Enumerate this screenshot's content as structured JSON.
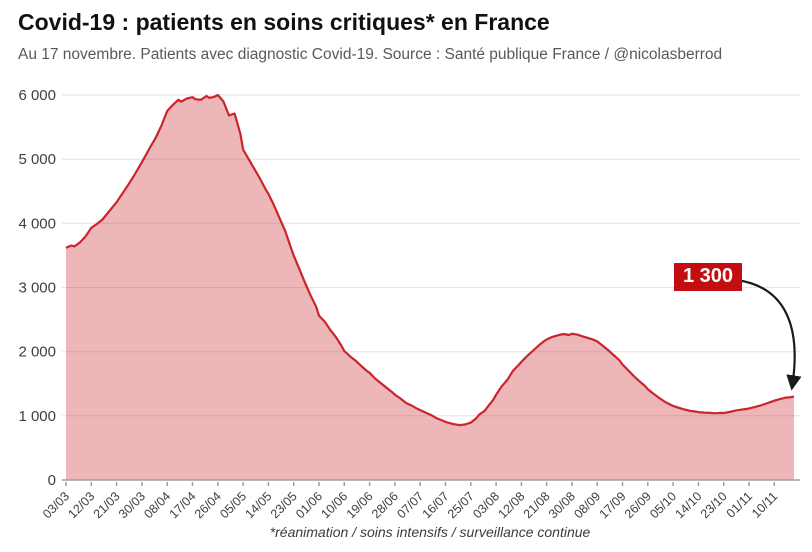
{
  "header": {
    "title": "Covid-19 : patients en soins critiques* en France",
    "subtitle": "Au 17 novembre. Patients avec diagnostic Covid-19. Source : Santé publique France / @nicolasberrod"
  },
  "footer": {
    "note": "*réanimation / soins intensifs / surveillance continue"
  },
  "chart_data": {
    "type": "area",
    "title": "Covid-19 : patients en soins critiques* en France",
    "subtitle": "Au 17 novembre. Patients avec diagnostic Covid-19. Source : Santé publique France / @nicolasberrod",
    "footnote": "*réanimation / soins intensifs / surveillance continue",
    "grid": true,
    "legend": false,
    "y_axis": {
      "lim": [
        0,
        6000
      ],
      "ticks": [
        0,
        1000,
        2000,
        3000,
        4000,
        5000,
        6000
      ],
      "tick_labels": [
        "0",
        "1 000",
        "2 000",
        "3 000",
        "4 000",
        "5 000",
        "6 000"
      ]
    },
    "x_axis": {
      "unit": "date (jj/mm)",
      "day_max": 259,
      "tick_days": [
        0,
        9,
        18,
        27,
        36,
        45,
        54,
        63,
        72,
        81,
        90,
        99,
        108,
        117,
        126,
        135,
        144,
        153,
        162,
        171,
        180,
        189,
        198,
        207,
        216,
        225,
        234,
        243,
        252
      ],
      "tick_labels": [
        "03/03",
        "12/03",
        "21/03",
        "30/03",
        "08/04",
        "17/04",
        "26/04",
        "05/05",
        "14/05",
        "23/05",
        "01/06",
        "10/06",
        "19/06",
        "28/06",
        "07/07",
        "16/07",
        "25/07",
        "03/08",
        "12/08",
        "21/08",
        "30/08",
        "08/09",
        "17/09",
        "26/09",
        "05/10",
        "14/10",
        "23/10",
        "01/11",
        "10/11"
      ]
    },
    "annotation": {
      "text": "1 300",
      "value": 1300
    },
    "colors": {
      "line": "#c9252b",
      "fill": "rgba(201,37,43,0.33)",
      "annotation_bg": "#c40d10",
      "annotation_text": "#ffffff",
      "grid": "#e4e4e4",
      "axis": "#9e9e9e",
      "tick_text": "#3f3f3f",
      "arrow": "#1a1a1a"
    },
    "series": [
      {
        "name": "Patients Covid-19 en soins critiques",
        "points_day_value": [
          [
            0,
            3620
          ],
          [
            2,
            3655
          ],
          [
            3,
            3640
          ],
          [
            5,
            3705
          ],
          [
            7,
            3800
          ],
          [
            9,
            3930
          ],
          [
            11,
            3990
          ],
          [
            13,
            4060
          ],
          [
            15,
            4170
          ],
          [
            18,
            4330
          ],
          [
            20,
            4460
          ],
          [
            22,
            4590
          ],
          [
            24,
            4730
          ],
          [
            26,
            4880
          ],
          [
            28,
            5030
          ],
          [
            30,
            5190
          ],
          [
            32,
            5340
          ],
          [
            34,
            5530
          ],
          [
            36,
            5750
          ],
          [
            38,
            5845
          ],
          [
            40,
            5925
          ],
          [
            41,
            5895
          ],
          [
            43,
            5945
          ],
          [
            45,
            5965
          ],
          [
            46,
            5935
          ],
          [
            48,
            5925
          ],
          [
            50,
            5985
          ],
          [
            51,
            5955
          ],
          [
            53,
            5975
          ],
          [
            54,
            6000
          ],
          [
            56,
            5900
          ],
          [
            58,
            5680
          ],
          [
            60,
            5710
          ],
          [
            62,
            5400
          ],
          [
            63,
            5150
          ],
          [
            65,
            5000
          ],
          [
            67,
            4850
          ],
          [
            69,
            4700
          ],
          [
            71,
            4530
          ],
          [
            72,
            4460
          ],
          [
            74,
            4280
          ],
          [
            76,
            4080
          ],
          [
            78,
            3880
          ],
          [
            80,
            3620
          ],
          [
            81,
            3500
          ],
          [
            83,
            3290
          ],
          [
            85,
            3080
          ],
          [
            87,
            2880
          ],
          [
            89,
            2700
          ],
          [
            90,
            2560
          ],
          [
            92,
            2470
          ],
          [
            94,
            2340
          ],
          [
            96,
            2230
          ],
          [
            98,
            2090
          ],
          [
            99,
            2010
          ],
          [
            101,
            1930
          ],
          [
            103,
            1860
          ],
          [
            105,
            1780
          ],
          [
            107,
            1700
          ],
          [
            108,
            1670
          ],
          [
            110,
            1580
          ],
          [
            112,
            1510
          ],
          [
            114,
            1440
          ],
          [
            116,
            1370
          ],
          [
            117,
            1330
          ],
          [
            119,
            1270
          ],
          [
            121,
            1200
          ],
          [
            123,
            1160
          ],
          [
            125,
            1110
          ],
          [
            126,
            1090
          ],
          [
            128,
            1050
          ],
          [
            130,
            1010
          ],
          [
            132,
            960
          ],
          [
            134,
            925
          ],
          [
            135,
            905
          ],
          [
            137,
            880
          ],
          [
            138,
            870
          ],
          [
            140,
            855
          ],
          [
            142,
            865
          ],
          [
            144,
            895
          ],
          [
            146,
            965
          ],
          [
            147,
            1020
          ],
          [
            149,
            1080
          ],
          [
            150,
            1140
          ],
          [
            152,
            1250
          ],
          [
            153,
            1330
          ],
          [
            155,
            1460
          ],
          [
            157,
            1560
          ],
          [
            159,
            1700
          ],
          [
            161,
            1790
          ],
          [
            162,
            1840
          ],
          [
            164,
            1930
          ],
          [
            166,
            2010
          ],
          [
            168,
            2090
          ],
          [
            170,
            2160
          ],
          [
            171,
            2190
          ],
          [
            173,
            2230
          ],
          [
            175,
            2255
          ],
          [
            177,
            2275
          ],
          [
            179,
            2260
          ],
          [
            180,
            2280
          ],
          [
            182,
            2265
          ],
          [
            184,
            2235
          ],
          [
            186,
            2210
          ],
          [
            188,
            2180
          ],
          [
            189,
            2160
          ],
          [
            191,
            2090
          ],
          [
            193,
            2020
          ],
          [
            195,
            1940
          ],
          [
            197,
            1860
          ],
          [
            198,
            1800
          ],
          [
            200,
            1710
          ],
          [
            202,
            1620
          ],
          [
            204,
            1540
          ],
          [
            206,
            1465
          ],
          [
            207,
            1415
          ],
          [
            209,
            1345
          ],
          [
            211,
            1280
          ],
          [
            213,
            1220
          ],
          [
            215,
            1175
          ],
          [
            216,
            1155
          ],
          [
            218,
            1125
          ],
          [
            220,
            1098
          ],
          [
            222,
            1078
          ],
          [
            224,
            1066
          ],
          [
            225,
            1058
          ],
          [
            227,
            1050
          ],
          [
            229,
            1046
          ],
          [
            231,
            1040
          ],
          [
            233,
            1046
          ],
          [
            234,
            1044
          ],
          [
            236,
            1060
          ],
          [
            238,
            1080
          ],
          [
            240,
            1096
          ],
          [
            242,
            1106
          ],
          [
            243,
            1116
          ],
          [
            245,
            1136
          ],
          [
            247,
            1160
          ],
          [
            249,
            1190
          ],
          [
            251,
            1220
          ],
          [
            252,
            1236
          ],
          [
            254,
            1260
          ],
          [
            256,
            1282
          ],
          [
            258,
            1292
          ],
          [
            259,
            1300
          ]
        ]
      }
    ]
  }
}
